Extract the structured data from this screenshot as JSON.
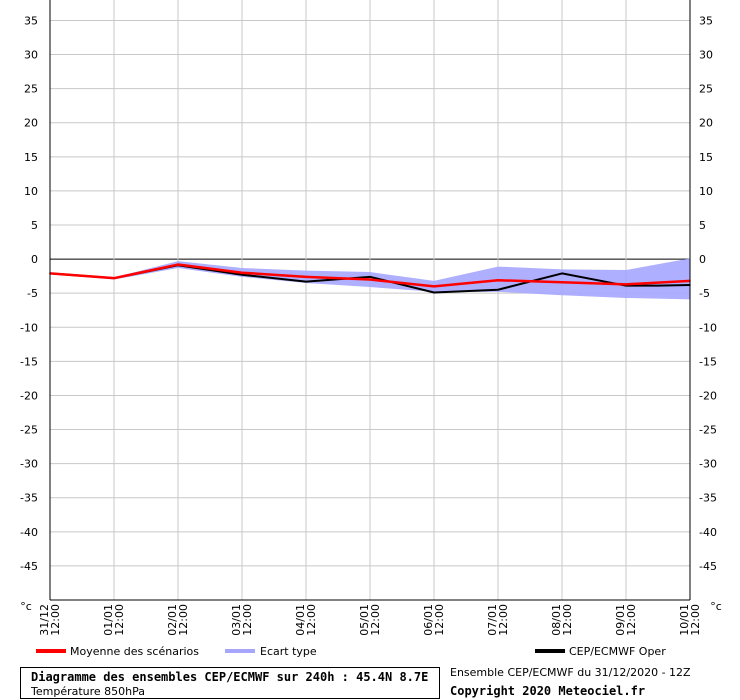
{
  "chart_data": {
    "type": "line",
    "title": "Diagramme des ensembles CEP/ECMWF sur 240h : 45.4N 8.7E",
    "subtitle": "Température 850hPa",
    "unit_label": "°c",
    "ylim": [
      -50,
      38
    ],
    "yticks": [
      35,
      30,
      25,
      20,
      15,
      10,
      5,
      0,
      -5,
      -10,
      -15,
      -20,
      -25,
      -30,
      -35,
      -40,
      -45
    ],
    "grid": true,
    "zero_line": true,
    "categories": [
      [
        "31/12",
        "12:00"
      ],
      [
        "01/01",
        "12:00"
      ],
      [
        "02/01",
        "12:00"
      ],
      [
        "03/01",
        "12:00"
      ],
      [
        "04/01",
        "12:00"
      ],
      [
        "05/01",
        "12:00"
      ],
      [
        "06/01",
        "12:00"
      ],
      [
        "07/01",
        "12:00"
      ],
      [
        "08/01",
        "12:00"
      ],
      [
        "09/01",
        "12:00"
      ],
      [
        "10/01",
        "12:00"
      ]
    ],
    "band_x": [
      0,
      1,
      2,
      3,
      4,
      5,
      6,
      7,
      8,
      9,
      10
    ],
    "band_upper": [
      -2.0,
      -2.7,
      -0.3,
      -1.3,
      -1.7,
      -1.9,
      -3.2,
      -1.1,
      -1.5,
      -1.6,
      0.1
    ],
    "band_lower": [
      -2.2,
      -3.0,
      -1.3,
      -2.6,
      -3.5,
      -4.1,
      -4.8,
      -4.8,
      -5.3,
      -5.7,
      -5.9
    ],
    "series": [
      {
        "name": "Moyenne des scénarios",
        "color": "#ff0000",
        "x": [
          0,
          1,
          2,
          3,
          4,
          5,
          6,
          7,
          8,
          9,
          10
        ],
        "values": [
          -2.1,
          -2.8,
          -0.8,
          -2.0,
          -2.6,
          -3.0,
          -4.0,
          -3.1,
          -3.4,
          -3.7,
          -3.2
        ]
      },
      {
        "name": "CEP/ECMWF Oper",
        "color": "#000000",
        "x": [
          0,
          1,
          2,
          3,
          4,
          5,
          6,
          7,
          8,
          9,
          9.5,
          10
        ],
        "values": [
          -2.1,
          -2.8,
          -0.9,
          -2.3,
          -3.3,
          -2.6,
          -4.9,
          -4.5,
          -2.1,
          -3.9,
          -3.9,
          -3.8
        ]
      }
    ],
    "legend": [
      {
        "label": "Moyenne des scénarios",
        "color": "#ff0000"
      },
      {
        "label": "Ecart type",
        "color": "#a6a6ff"
      },
      {
        "label": "CEP/ECMWF Oper",
        "color": "#000000"
      }
    ]
  },
  "footer": {
    "run_info": "Ensemble CEP/ECMWF du 31/12/2020 - 12Z",
    "copyright": "Copyright 2020 Meteociel.fr"
  }
}
